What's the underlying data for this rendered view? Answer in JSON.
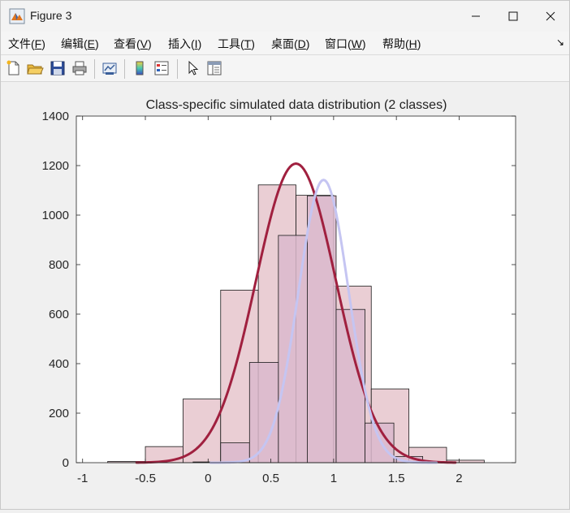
{
  "window": {
    "title": "Figure 3",
    "controls": [
      "minimize",
      "maximize",
      "close"
    ]
  },
  "menubar": {
    "items": [
      {
        "label": "文件(",
        "key": "F",
        "tail": ")"
      },
      {
        "label": "编辑(",
        "key": "E",
        "tail": ")"
      },
      {
        "label": "查看(",
        "key": "V",
        "tail": ")"
      },
      {
        "label": "插入(",
        "key": "I",
        "tail": ")"
      },
      {
        "label": "工具(",
        "key": "T",
        "tail": ")"
      },
      {
        "label": "桌面(",
        "key": "D",
        "tail": ")"
      },
      {
        "label": "窗口(",
        "key": "W",
        "tail": ")"
      },
      {
        "label": "帮助(",
        "key": "H",
        "tail": ")"
      }
    ],
    "dock_icon": "dock-arrow-icon"
  },
  "toolbar": {
    "icons": [
      "new-file-icon",
      "open-folder-icon",
      "save-icon",
      "print-icon",
      "link-plot-icon",
      "colorbar-icon",
      "legend-icon",
      "pointer-icon",
      "property-inspector-icon"
    ]
  },
  "chart_data": {
    "type": "bar",
    "title": "Class-specific simulated data distribution (2 classes)",
    "xlabel": "",
    "ylabel": "",
    "xlim": [
      -1.05,
      2.45
    ],
    "ylim": [
      0,
      1400
    ],
    "xticks": [
      "-1",
      "-0.5",
      "0",
      "0.5",
      "1",
      "1.5",
      "2"
    ],
    "yticks": [
      "0",
      "200",
      "400",
      "600",
      "800",
      "1000",
      "1200",
      "1400"
    ],
    "grid": false,
    "series": [
      {
        "kind": "histogram",
        "color": "#e6c5cc",
        "edges": [
          -0.8,
          -0.5,
          -0.2,
          0.1,
          0.4,
          0.7,
          1.0,
          1.3,
          1.6,
          1.9,
          2.2
        ],
        "counts": [
          5,
          65,
          257,
          697,
          1122,
          1080,
          713,
          298,
          62,
          10
        ]
      },
      {
        "kind": "histogram",
        "color": "#dbb9cd",
        "edges": [
          -0.12,
          0.1,
          0.33,
          0.56,
          0.79,
          1.02,
          1.25,
          1.48,
          1.71,
          1.94
        ],
        "counts": [
          3,
          80,
          405,
          918,
          1078,
          619,
          160,
          25,
          2
        ]
      },
      {
        "kind": "curve",
        "color": "#a0203f",
        "mean": 0.7,
        "sd": 0.32,
        "peak": 1208,
        "range": [
          -0.57,
          1.97
        ]
      },
      {
        "kind": "curve",
        "color": "#c5c5f2",
        "mean": 0.92,
        "sd": 0.2,
        "peak": 1142,
        "range": [
          0.02,
          1.82
        ]
      }
    ]
  }
}
